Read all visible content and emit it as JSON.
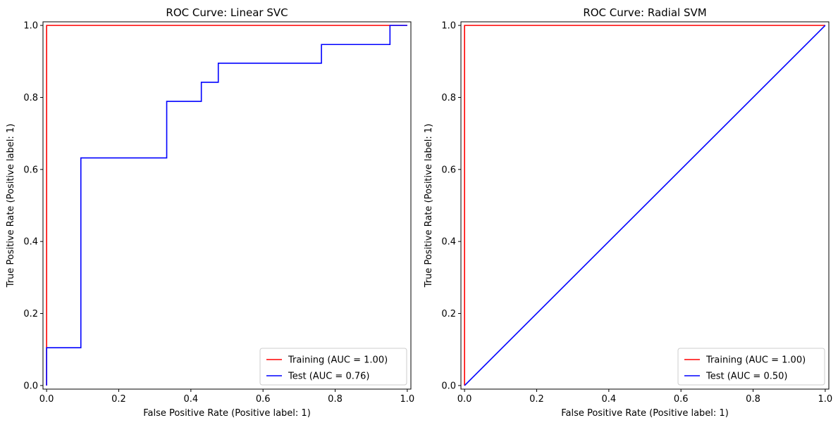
{
  "chart_data": [
    {
      "type": "line",
      "title": "ROC Curve: Linear SVC",
      "xlabel": "False Positive Rate (Positive label: 1)",
      "ylabel": "True Positive Rate (Positive label: 1)",
      "xlim": [
        -0.01,
        1.01
      ],
      "ylim": [
        -0.01,
        1.01
      ],
      "xticks": [
        "0.0",
        "0.2",
        "0.4",
        "0.6",
        "0.8",
        "1.0"
      ],
      "yticks": [
        "0.0",
        "0.2",
        "0.4",
        "0.6",
        "0.8",
        "1.0"
      ],
      "grid": false,
      "legend_position": "lower-right",
      "series": [
        {
          "name": "Training (AUC = 1.00)",
          "color": "#ff0000",
          "x": [
            0,
            0,
            1
          ],
          "y": [
            0,
            1,
            1
          ]
        },
        {
          "name": "Test (AUC = 0.76)",
          "color": "#0000ff",
          "x": [
            0,
            0,
            0.095,
            0.095,
            0.333,
            0.333,
            0.429,
            0.429,
            0.476,
            0.476,
            0.762,
            0.762,
            0.952,
            0.952,
            1
          ],
          "y": [
            0,
            0.105,
            0.105,
            0.632,
            0.632,
            0.789,
            0.789,
            0.842,
            0.842,
            0.895,
            0.895,
            0.947,
            0.947,
            1,
            1
          ]
        }
      ]
    },
    {
      "type": "line",
      "title": "ROC Curve: Radial SVM",
      "xlabel": "False Positive Rate (Positive label: 1)",
      "ylabel": "True Positive Rate (Positive label: 1)",
      "xlim": [
        -0.01,
        1.01
      ],
      "ylim": [
        -0.01,
        1.01
      ],
      "xticks": [
        "0.0",
        "0.2",
        "0.4",
        "0.6",
        "0.8",
        "1.0"
      ],
      "yticks": [
        "0.0",
        "0.2",
        "0.4",
        "0.6",
        "0.8",
        "1.0"
      ],
      "grid": false,
      "legend_position": "lower-right",
      "series": [
        {
          "name": "Training (AUC = 1.00)",
          "color": "#ff0000",
          "x": [
            0,
            0,
            1
          ],
          "y": [
            0,
            1,
            1
          ]
        },
        {
          "name": "Test (AUC = 0.50)",
          "color": "#0000ff",
          "x": [
            0,
            1
          ],
          "y": [
            0,
            1
          ]
        }
      ]
    }
  ]
}
